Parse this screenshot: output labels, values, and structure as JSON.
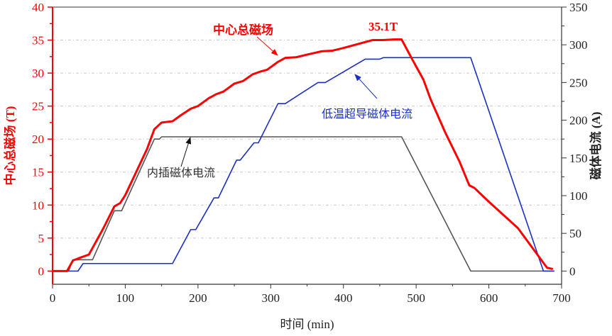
{
  "chart_data": {
    "type": "line",
    "xlabel": "时间 (min)",
    "ylabel_left": "中心总磁场 (T)",
    "ylabel_right": "磁体电流 (A)",
    "xlim": [
      0,
      700
    ],
    "ylim_left": [
      -2,
      40
    ],
    "ylim_right": [
      -17.5,
      350
    ],
    "xticks": [
      0,
      100,
      200,
      300,
      400,
      500,
      600,
      700
    ],
    "yticks_left": [
      0,
      5,
      10,
      15,
      20,
      25,
      30,
      35,
      40
    ],
    "yticks_right": [
      0,
      50,
      100,
      150,
      200,
      250,
      300,
      350
    ],
    "grid": "horizontal dotted at left major ticks",
    "colors": {
      "left_axis": "#ff0000",
      "field": "#ff0000",
      "lts": "#1a2fc8",
      "insert": "#555555",
      "grid": "#c8c8c8"
    },
    "series": [
      {
        "name": "中心总磁场",
        "axis": "left",
        "color": "#ff0000",
        "x": [
          0,
          20,
          28,
          40,
          50,
          55,
          70,
          85,
          93,
          100,
          115,
          130,
          140,
          145,
          150,
          165,
          175,
          190,
          200,
          215,
          225,
          235,
          250,
          262,
          275,
          285,
          295,
          310,
          320,
          335,
          350,
          370,
          385,
          400,
          440,
          455,
          470,
          480,
          495,
          510,
          520,
          540,
          560,
          573,
          580,
          600,
          640,
          680,
          688
        ],
        "y": [
          0,
          0,
          1.6,
          2.1,
          2.5,
          3.5,
          6.5,
          9.8,
          10.3,
          11.5,
          15,
          18.5,
          21.5,
          22,
          22.5,
          22.7,
          23.5,
          24.6,
          25,
          26.2,
          26.8,
          27.2,
          28.4,
          28.8,
          29.8,
          30.2,
          30.5,
          31.7,
          32.3,
          32.4,
          32.8,
          33.3,
          33.4,
          33.8,
          35,
          35,
          35.1,
          35.1,
          32,
          29,
          26,
          21,
          16.5,
          13,
          12.6,
          10.5,
          6.5,
          0.5,
          0.3
        ]
      },
      {
        "name": "低温超导磁体电流",
        "axis": "right",
        "color": "#1a2fc8",
        "x": [
          0,
          35,
          42,
          165,
          190,
          197,
          222,
          228,
          253,
          258,
          277,
          283,
          310,
          320,
          365,
          375,
          430,
          450,
          455,
          575,
          675,
          690
        ],
        "y": [
          0,
          0,
          10,
          10,
          55,
          55,
          97,
          97,
          147,
          147,
          170,
          170,
          222,
          222,
          250,
          250,
          281,
          281,
          283,
          283,
          0,
          0
        ]
      },
      {
        "name": "内插磁体电流",
        "axis": "right",
        "color": "#555555",
        "x": [
          0,
          22,
          28,
          55,
          85,
          95,
          140,
          147,
          150,
          480,
          575,
          690
        ],
        "y": [
          0,
          0,
          15,
          15,
          80,
          80,
          175,
          175,
          178,
          178,
          0,
          0
        ]
      }
    ],
    "annotations": [
      {
        "text": "中心总磁场",
        "color": "#ff0000",
        "bold": true
      },
      {
        "text": "35.1T",
        "color": "#ff0000",
        "bold": true
      },
      {
        "text": "低温超导磁体电流",
        "color": "#1a2fc8"
      },
      {
        "text": "内插磁体电流",
        "color": "#333333"
      }
    ]
  }
}
